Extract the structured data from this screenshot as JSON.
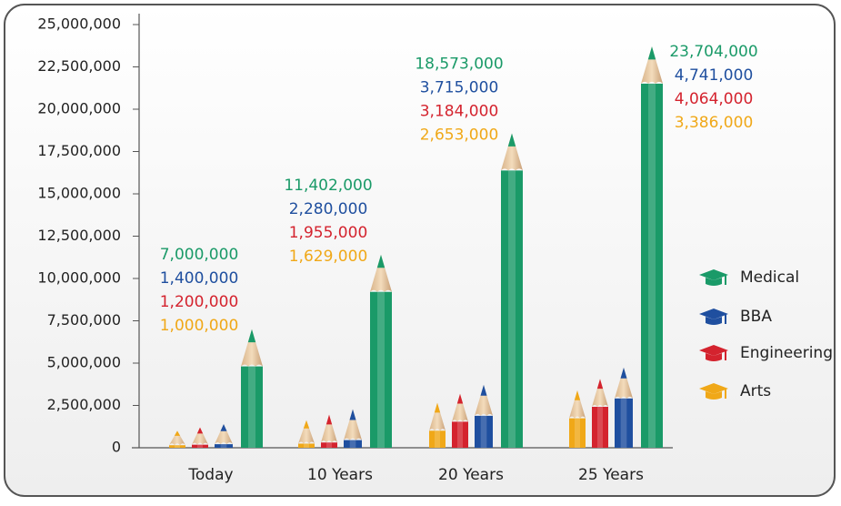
{
  "chart_data": {
    "type": "pencil-bar",
    "categories": [
      "Today",
      "10 Years",
      "20 Years",
      "25 Years"
    ],
    "series": [
      {
        "name": "Medical",
        "color": "#1a9a68",
        "values": [
          7000000,
          11402000,
          18573000,
          23704000
        ],
        "value_labels": [
          "7,000,000",
          "11,402,000",
          "18,573,000",
          "23,704,000"
        ]
      },
      {
        "name": "BBA",
        "color": "#1f4f9f",
        "values": [
          1400000,
          2280000,
          3715000,
          4741000
        ],
        "value_labels": [
          "1,400,000",
          "2,280,000",
          "3,715,000",
          "4,741,000"
        ]
      },
      {
        "name": "Engineering",
        "color": "#d4232e",
        "values": [
          1200000,
          1955000,
          3184000,
          4064000
        ],
        "value_labels": [
          "1,200,000",
          "1,955,000",
          "3,184,000",
          "4,064,000"
        ]
      },
      {
        "name": "Arts",
        "color": "#f0a818",
        "values": [
          1000000,
          1629000,
          2653000,
          3386000
        ],
        "value_labels": [
          "1,000,000",
          "1,629,000",
          "2,653,000",
          "3,386,000"
        ]
      }
    ],
    "ylim": [
      0,
      25000000
    ],
    "yticks": [
      0,
      {
        "value": 2500000,
        "label": "2,500,000"
      },
      {
        "value": 5000000,
        "label": "5,000,000"
      },
      {
        "value": 7500000,
        "label": "7,500,000"
      },
      {
        "value": 10000000,
        "label": "10,000,000"
      },
      {
        "value": 12500000,
        "label": "12,500,000"
      },
      {
        "value": 15000000,
        "label": "15,000,000"
      },
      {
        "value": 17500000,
        "label": "17,500,000"
      },
      {
        "value": 20000000,
        "label": "20,000,000"
      },
      {
        "value": 22500000,
        "label": "22,500,000"
      },
      {
        "value": 25000000,
        "label": "25,000,000"
      }
    ],
    "legend": "right"
  }
}
